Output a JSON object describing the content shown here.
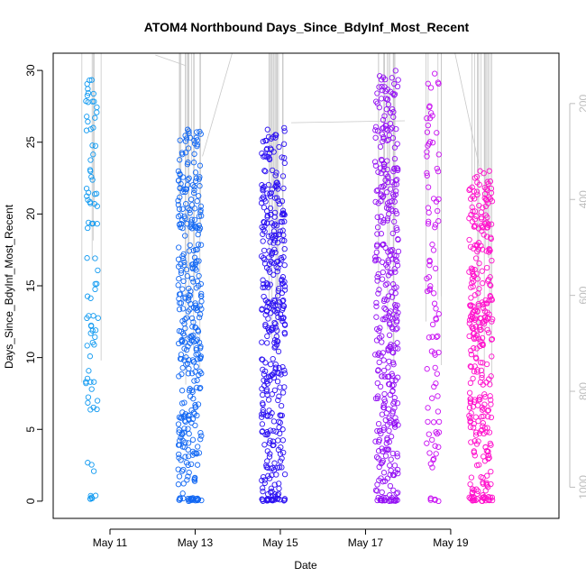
{
  "chart_data": {
    "type": "scatter",
    "title": "ATOM4 Northbound Days_Since_BdyInf_Most_Recent",
    "xlabel": "Date",
    "ylabel": "Days_Since_BdyInf_Most_Recent",
    "x_unit": "date",
    "xlim": [
      "2024-05-09T16:00",
      "2024-05-21T13:00"
    ],
    "ylim": [
      -1.2,
      31.2
    ],
    "y_ticks": [
      0,
      5,
      10,
      15,
      20,
      25,
      30
    ],
    "x_ticks": [
      {
        "date": "2024-05-11",
        "label": "May 11"
      },
      {
        "date": "2024-05-13",
        "label": "May 13"
      },
      {
        "date": "2024-05-15",
        "label": "May 15"
      },
      {
        "date": "2024-05-17",
        "label": "May 17"
      },
      {
        "date": "2024-05-19",
        "label": "May 19"
      }
    ],
    "secondary_y_axis": {
      "side": "right",
      "color": "#bdbdbd",
      "reversed": true,
      "lim": [
        95,
        1065
      ],
      "ticks": [
        200,
        400,
        600,
        800,
        1000
      ]
    },
    "grid": false,
    "legend": "none",
    "marker": "open-circle",
    "color_gradient": [
      "#0fa3f2",
      "#0f5ff4",
      "#2b12f0",
      "#8a10f5",
      "#d60ff1",
      "#ff10c8"
    ],
    "groups": [
      {
        "center": "2024-05-10T14:00",
        "color": "#139bf1",
        "density": "low",
        "y_ranges": [
          [
            0,
            0.4
          ],
          [
            2,
            2.8
          ],
          [
            6,
            10
          ],
          [
            10,
            17
          ],
          [
            17,
            30
          ]
        ]
      },
      {
        "center": "2024-05-12T21:00",
        "color": "#1368f3",
        "density": "high",
        "y_ranges": [
          [
            0,
            0.2
          ],
          [
            0,
            6
          ],
          [
            6,
            12
          ],
          [
            11,
            20
          ],
          [
            19,
            26
          ]
        ]
      },
      {
        "center": "2024-05-14T20:00",
        "color": "#2d12f2",
        "density": "high",
        "y_ranges": [
          [
            0,
            0.2
          ],
          [
            0,
            8
          ],
          [
            8,
            14
          ],
          [
            12,
            20
          ],
          [
            18,
            26
          ]
        ]
      },
      {
        "center": "2024-05-17T12:00",
        "color": "#9411f4",
        "density": "high",
        "y_ranges": [
          [
            0,
            0.3
          ],
          [
            0,
            6
          ],
          [
            6,
            12
          ],
          [
            12,
            20
          ],
          [
            20,
            30
          ]
        ]
      },
      {
        "center": "2024-05-18T14:00",
        "color": "#c80ff2",
        "density": "low",
        "y_ranges": [
          [
            0,
            0.2
          ],
          [
            2,
            10
          ],
          [
            10,
            20
          ],
          [
            20,
            30
          ]
        ]
      },
      {
        "center": "2024-05-19T17:00",
        "color": "#ff10cc",
        "density": "high",
        "y_ranges": [
          [
            0,
            0.3
          ],
          [
            0,
            8
          ],
          [
            8,
            14
          ],
          [
            12,
            20
          ],
          [
            19,
            23
          ]
        ]
      }
    ]
  }
}
